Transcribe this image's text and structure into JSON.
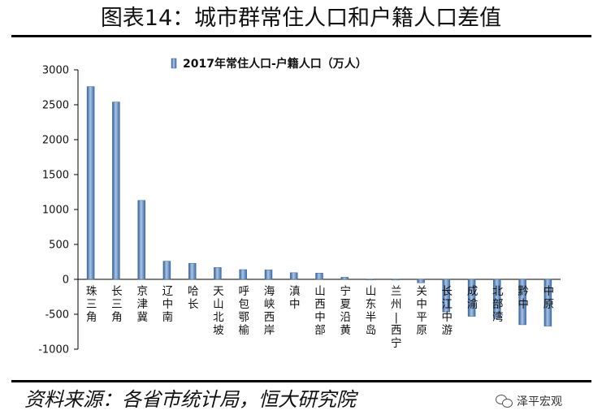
{
  "title": "图表14：城市群常住人口和户籍人口差值",
  "source": "资料来源：各省市统计局，恒大研究院",
  "watermark": "泽平宏观",
  "chart_data": {
    "type": "bar",
    "title": "",
    "xlabel": "",
    "ylabel": "",
    "ylim": [
      -1000,
      3000
    ],
    "yticks": [
      -1000,
      -500,
      0,
      500,
      1000,
      1500,
      2000,
      2500,
      3000
    ],
    "grid": false,
    "legend_position": "top-center",
    "categories": [
      "珠三角",
      "长三角",
      "京津冀",
      "辽中南",
      "哈长",
      "天山北坡",
      "呼包鄂榆",
      "海峡西岸",
      "滇中",
      "山西中部",
      "宁夏沿黄",
      "山东半岛",
      "兰州—西宁",
      "关中平原",
      "长江中游",
      "成渝",
      "北部湾",
      "黔中",
      "中原"
    ],
    "series": [
      {
        "name": "2017年常住人口-户籍人口（万人）",
        "color": "#4f81bd",
        "values": [
          2760,
          2540,
          1130,
          260,
          230,
          170,
          140,
          135,
          95,
          90,
          30,
          -5,
          -10,
          -50,
          -470,
          -530,
          -560,
          -650,
          -670
        ]
      }
    ]
  }
}
